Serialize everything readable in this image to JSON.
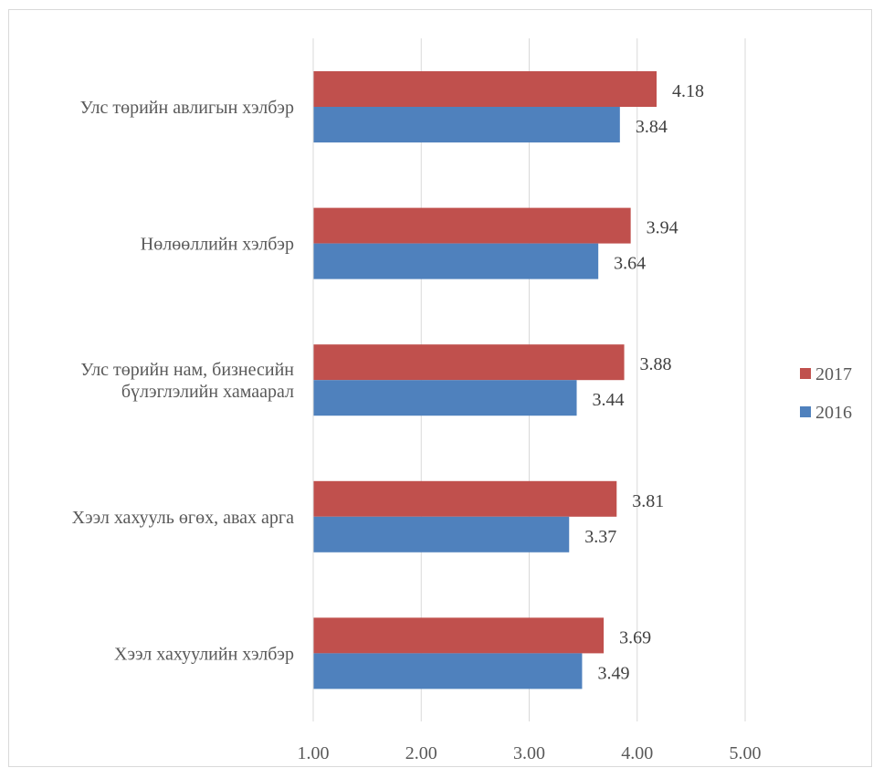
{
  "chart_data": {
    "type": "bar",
    "orientation": "horizontal",
    "categories": [
      [
        "Улс төрийн авлигын хэлбэр"
      ],
      [
        "Нөлөөллийн хэлбэр"
      ],
      [
        "Улс төрийн нам, бизнесийн",
        "бүлэглэлийн хамаарал"
      ],
      [
        "Хээл хахууль өгөх, авах арга"
      ],
      [
        "Хээл хахуулийн хэлбэр"
      ]
    ],
    "series": [
      {
        "name": "2017",
        "color": "#c0504d",
        "values": [
          4.18,
          3.94,
          3.88,
          3.81,
          3.69
        ],
        "labels": [
          "4.18",
          "3.94",
          "3.88",
          "3.81",
          "3.69"
        ]
      },
      {
        "name": "2016",
        "color": "#4f81bd",
        "values": [
          3.84,
          3.64,
          3.44,
          3.37,
          3.49
        ],
        "labels": [
          "3.84",
          "3.64",
          "3.44",
          "3.37",
          "3.49"
        ]
      }
    ],
    "xlim": [
      1,
      5
    ],
    "ticks": [
      1,
      2,
      3,
      4,
      5
    ],
    "tick_labels": [
      "1.00",
      "2.00",
      "3.00",
      "4.00",
      "5.00"
    ],
    "gridlines": true,
    "gridline_color": "#d9d9d9",
    "legend_position": "right",
    "title": "",
    "xlabel": "",
    "ylabel": ""
  }
}
